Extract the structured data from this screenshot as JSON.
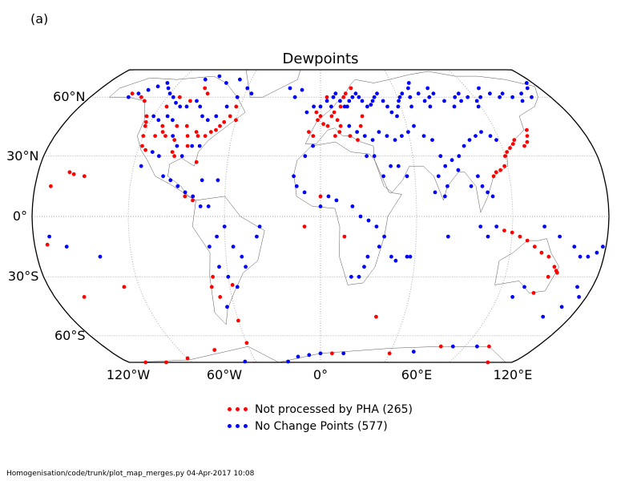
{
  "panel_label": "(a)",
  "title": "Dewpoints",
  "projection": "Robinson",
  "colors": {
    "not_processed": "#ff0000",
    "no_change": "#0000ff",
    "outline": "#000000",
    "grid": "#aaaaaa"
  },
  "lat_labels": [
    {
      "lat": 60,
      "text": "60°N"
    },
    {
      "lat": 30,
      "text": "30°N"
    },
    {
      "lat": 0,
      "text": "0°"
    },
    {
      "lat": -30,
      "text": "30°S"
    },
    {
      "lat": -60,
      "text": "60°S"
    }
  ],
  "lon_labels": [
    {
      "lon": -120,
      "text": "120°W"
    },
    {
      "lon": -60,
      "text": "60°W"
    },
    {
      "lon": 0,
      "text": "0°"
    },
    {
      "lon": 60,
      "text": "60°E"
    },
    {
      "lon": 120,
      "text": "120°E"
    }
  ],
  "legend": [
    {
      "key": "not_processed",
      "label": "Not processed by PHA (265)"
    },
    {
      "key": "no_change",
      "label": "No Change Points (577)"
    }
  ],
  "footer": "Homogenisation/code/trunk/plot_map_merges.py   04-Apr-2017 10:08",
  "chart_data": {
    "type": "scatter",
    "title": "Dewpoints",
    "series": [
      {
        "name": "Not processed by PHA (265)",
        "color": "#ff0000",
        "points": [
          [
            -150,
            62
          ],
          [
            -140,
            60
          ],
          [
            -135,
            58
          ],
          [
            -125,
            50
          ],
          [
            -123,
            47
          ],
          [
            -122,
            45
          ],
          [
            -120,
            40
          ],
          [
            -118,
            35
          ],
          [
            -115,
            33
          ],
          [
            -112,
            40
          ],
          [
            -110,
            45
          ],
          [
            -108,
            42
          ],
          [
            -105,
            40
          ],
          [
            -100,
            45
          ],
          [
            -98,
            38
          ],
          [
            -97,
            32
          ],
          [
            -95,
            30
          ],
          [
            -93,
            45
          ],
          [
            -90,
            40
          ],
          [
            -88,
            35
          ],
          [
            -85,
            42
          ],
          [
            -83,
            40
          ],
          [
            -80,
            27
          ],
          [
            -78,
            40
          ],
          [
            -75,
            42
          ],
          [
            -72,
            43
          ],
          [
            -70,
            45
          ],
          [
            -68,
            47
          ],
          [
            -65,
            50
          ],
          [
            -63,
            55
          ],
          [
            -60,
            48
          ],
          [
            -115,
            55
          ],
          [
            -110,
            60
          ],
          [
            -100,
            58
          ],
          [
            -95,
            65
          ],
          [
            -90,
            62
          ],
          [
            -150,
            20
          ],
          [
            -157,
            21
          ],
          [
            -160,
            22
          ],
          [
            -170,
            15
          ],
          [
            -172,
            -14
          ],
          [
            -85,
            10
          ],
          [
            -80,
            8
          ],
          [
            -70,
            -30
          ],
          [
            -72,
            -35
          ],
          [
            -68,
            -40
          ],
          [
            -60,
            -52
          ],
          [
            -58,
            -34
          ],
          [
            -3,
            52
          ],
          [
            -2,
            48
          ],
          [
            0,
            50
          ],
          [
            2,
            46
          ],
          [
            5,
            45
          ],
          [
            8,
            50
          ],
          [
            10,
            52
          ],
          [
            12,
            48
          ],
          [
            14,
            45
          ],
          [
            15,
            55
          ],
          [
            18,
            60
          ],
          [
            20,
            62
          ],
          [
            25,
            65
          ],
          [
            5,
            60
          ],
          [
            -5,
            40
          ],
          [
            -8,
            42
          ],
          [
            10,
            40
          ],
          [
            13,
            42
          ],
          [
            20,
            40
          ],
          [
            25,
            38
          ],
          [
            28,
            45
          ],
          [
            30,
            50
          ],
          [
            0,
            10
          ],
          [
            15,
            -10
          ],
          [
            -10,
            -5
          ],
          [
            120,
            30
          ],
          [
            122,
            32
          ],
          [
            125,
            34
          ],
          [
            128,
            36
          ],
          [
            130,
            38
          ],
          [
            135,
            35
          ],
          [
            138,
            37
          ],
          [
            140,
            40
          ],
          [
            142,
            43
          ],
          [
            118,
            25
          ],
          [
            115,
            23
          ],
          [
            112,
            22
          ],
          [
            110,
            20
          ],
          [
            115,
            -7
          ],
          [
            120,
            -8
          ],
          [
            125,
            -10
          ],
          [
            130,
            -12
          ],
          [
            135,
            -15
          ],
          [
            140,
            -18
          ],
          [
            145,
            -20
          ],
          [
            150,
            -25
          ],
          [
            152,
            -27
          ],
          [
            153,
            -28
          ],
          [
            148,
            -30
          ],
          [
            143,
            -38
          ],
          [
            -130,
            -35
          ],
          [
            -160,
            -40
          ],
          [
            10,
            -70
          ],
          [
            60,
            -70
          ],
          [
            100,
            -66
          ],
          [
            140,
            -66
          ],
          [
            160,
            -77
          ],
          [
            -60,
            -64
          ],
          [
            -90,
            -68
          ],
          [
            -120,
            -73
          ],
          [
            -150,
            -78
          ],
          [
            -170,
            -78
          ],
          [
            40,
            -50
          ]
        ]
      },
      {
        "name": "No Change Points (577)",
        "color": "#0000ff",
        "points": [
          [
            -150,
            60
          ],
          [
            -145,
            62
          ],
          [
            -140,
            64
          ],
          [
            -135,
            66
          ],
          [
            -130,
            68
          ],
          [
            -125,
            65
          ],
          [
            -120,
            62
          ],
          [
            -115,
            60
          ],
          [
            -110,
            57
          ],
          [
            -105,
            55
          ],
          [
            -100,
            55
          ],
          [
            -95,
            58
          ],
          [
            -90,
            55
          ],
          [
            -85,
            50
          ],
          [
            -80,
            48
          ],
          [
            -75,
            50
          ],
          [
            -70,
            55
          ],
          [
            -65,
            60
          ],
          [
            -60,
            65
          ],
          [
            -55,
            62
          ],
          [
            -100,
            70
          ],
          [
            -90,
            72
          ],
          [
            -80,
            68
          ],
          [
            -70,
            70
          ],
          [
            -120,
            50
          ],
          [
            -115,
            48
          ],
          [
            -110,
            50
          ],
          [
            -105,
            48
          ],
          [
            -100,
            40
          ],
          [
            -95,
            35
          ],
          [
            -90,
            30
          ],
          [
            -85,
            35
          ],
          [
            -80,
            35
          ],
          [
            -105,
            30
          ],
          [
            -110,
            32
          ],
          [
            -115,
            25
          ],
          [
            -100,
            20
          ],
          [
            -95,
            18
          ],
          [
            -90,
            15
          ],
          [
            -85,
            12
          ],
          [
            -75,
            18
          ],
          [
            -65,
            18
          ],
          [
            -80,
            10
          ],
          [
            -75,
            5
          ],
          [
            -70,
            5
          ],
          [
            -60,
            -5
          ],
          [
            -65,
            -10
          ],
          [
            -70,
            -15
          ],
          [
            -55,
            -15
          ],
          [
            -50,
            -20
          ],
          [
            -48,
            -25
          ],
          [
            -65,
            -25
          ],
          [
            -60,
            -30
          ],
          [
            -65,
            -45
          ],
          [
            -55,
            -35
          ],
          [
            -40,
            -10
          ],
          [
            -38,
            -5
          ],
          [
            -170,
            -10
          ],
          [
            -160,
            -15
          ],
          [
            -140,
            -20
          ],
          [
            -20,
            60
          ],
          [
            -15,
            64
          ],
          [
            -25,
            65
          ],
          [
            -10,
            52
          ],
          [
            -5,
            55
          ],
          [
            0,
            55
          ],
          [
            5,
            58
          ],
          [
            8,
            55
          ],
          [
            10,
            60
          ],
          [
            12,
            62
          ],
          [
            15,
            58
          ],
          [
            18,
            55
          ],
          [
            20,
            55
          ],
          [
            22,
            58
          ],
          [
            25,
            60
          ],
          [
            28,
            62
          ],
          [
            30,
            60
          ],
          [
            32,
            58
          ],
          [
            35,
            55
          ],
          [
            38,
            56
          ],
          [
            40,
            58
          ],
          [
            42,
            60
          ],
          [
            45,
            62
          ],
          [
            48,
            58
          ],
          [
            50,
            55
          ],
          [
            52,
            52
          ],
          [
            55,
            50
          ],
          [
            58,
            55
          ],
          [
            60,
            58
          ],
          [
            62,
            60
          ],
          [
            65,
            62
          ],
          [
            68,
            55
          ],
          [
            70,
            60
          ],
          [
            72,
            65
          ],
          [
            75,
            68
          ],
          [
            78,
            62
          ],
          [
            80,
            58
          ],
          [
            82,
            55
          ],
          [
            85,
            60
          ],
          [
            88,
            65
          ],
          [
            90,
            62
          ],
          [
            95,
            58
          ],
          [
            100,
            55
          ],
          [
            105,
            60
          ],
          [
            108,
            58
          ],
          [
            110,
            62
          ],
          [
            115,
            60
          ],
          [
            118,
            55
          ],
          [
            120,
            58
          ],
          [
            125,
            60
          ],
          [
            130,
            65
          ],
          [
            135,
            62
          ],
          [
            140,
            60
          ],
          [
            145,
            62
          ],
          [
            150,
            60
          ],
          [
            155,
            58
          ],
          [
            160,
            62
          ],
          [
            165,
            60
          ],
          [
            170,
            65
          ],
          [
            175,
            68
          ],
          [
            20,
            45
          ],
          [
            25,
            42
          ],
          [
            30,
            40
          ],
          [
            35,
            38
          ],
          [
            40,
            42
          ],
          [
            45,
            40
          ],
          [
            50,
            38
          ],
          [
            55,
            40
          ],
          [
            60,
            42
          ],
          [
            65,
            45
          ],
          [
            70,
            40
          ],
          [
            75,
            38
          ],
          [
            78,
            30
          ],
          [
            80,
            25
          ],
          [
            85,
            28
          ],
          [
            88,
            23
          ],
          [
            90,
            30
          ],
          [
            95,
            35
          ],
          [
            100,
            38
          ],
          [
            105,
            40
          ],
          [
            110,
            42
          ],
          [
            115,
            40
          ],
          [
            118,
            38
          ],
          [
            100,
            20
          ],
          [
            102,
            15
          ],
          [
            105,
            12
          ],
          [
            108,
            10
          ],
          [
            95,
            15
          ],
          [
            80,
            15
          ],
          [
            75,
            20
          ],
          [
            72,
            12
          ],
          [
            78,
            10
          ],
          [
            45,
            25
          ],
          [
            50,
            25
          ],
          [
            55,
            20
          ],
          [
            40,
            20
          ],
          [
            35,
            30
          ],
          [
            30,
            30
          ],
          [
            -5,
            35
          ],
          [
            -10,
            30
          ],
          [
            -15,
            15
          ],
          [
            -17,
            20
          ],
          [
            -10,
            12
          ],
          [
            0,
            5
          ],
          [
            5,
            10
          ],
          [
            10,
            8
          ],
          [
            20,
            5
          ],
          [
            25,
            0
          ],
          [
            30,
            -2
          ],
          [
            35,
            -5
          ],
          [
            40,
            -10
          ],
          [
            37,
            -15
          ],
          [
            30,
            -20
          ],
          [
            28,
            -25
          ],
          [
            25,
            -30
          ],
          [
            20,
            -30
          ],
          [
            45,
            -20
          ],
          [
            48,
            -22
          ],
          [
            55,
            -20
          ],
          [
            57,
            -20
          ],
          [
            80,
            -10
          ],
          [
            100,
            -5
          ],
          [
            105,
            -10
          ],
          [
            110,
            -5
          ],
          [
            140,
            -5
          ],
          [
            150,
            -10
          ],
          [
            160,
            -15
          ],
          [
            165,
            -20
          ],
          [
            170,
            -20
          ],
          [
            175,
            -18
          ],
          [
            178,
            -15
          ],
          [
            170,
            -35
          ],
          [
            175,
            -40
          ],
          [
            168,
            -45
          ],
          [
            160,
            -50
          ],
          [
            135,
            -35
          ],
          [
            130,
            -40
          ],
          [
            -70,
            -75
          ],
          [
            0,
            -70
          ],
          [
            20,
            -70
          ],
          [
            80,
            -69
          ],
          [
            110,
            -66
          ],
          [
            130,
            -66
          ],
          [
            -30,
            -75
          ],
          [
            -20,
            -72
          ],
          [
            -10,
            -71
          ]
        ]
      }
    ],
    "xlabel": "",
    "ylabel": "",
    "xlim": [
      -180,
      180
    ],
    "ylim": [
      -90,
      90
    ],
    "legend_position": "bottom"
  }
}
